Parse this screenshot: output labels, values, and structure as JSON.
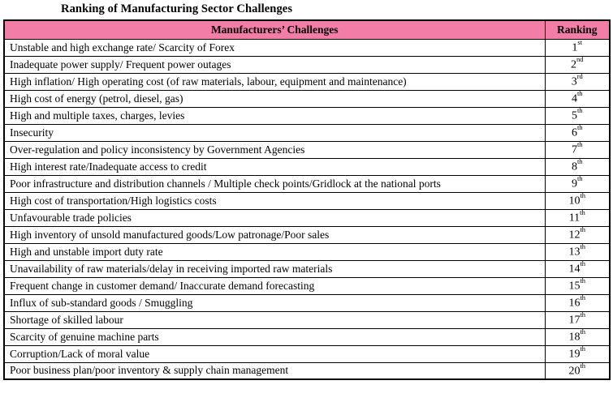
{
  "title": "Ranking of Manufacturing Sector Challenges",
  "colors": {
    "header_bg": "#f27da7",
    "border": "#000000",
    "text": "#000000"
  },
  "table": {
    "headers": [
      "Manufacturers’ Challenges",
      "Ranking"
    ],
    "rows": [
      {
        "challenge": "Unstable and high exchange rate/ Scarcity of Forex",
        "rank": "1",
        "suffix": "st"
      },
      {
        "challenge": "Inadequate power supply/ Frequent power outages",
        "rank": "2",
        "suffix": "nd"
      },
      {
        "challenge": "High inflation/ High operating cost (of raw materials, labour, equipment and maintenance)",
        "rank": "3",
        "suffix": "rd"
      },
      {
        "challenge": "High cost of energy (petrol, diesel, gas)",
        "rank": "4",
        "suffix": "th"
      },
      {
        "challenge": "High and multiple taxes, charges, levies",
        "rank": "5",
        "suffix": "th"
      },
      {
        "challenge": "Insecurity",
        "rank": "6",
        "suffix": "th"
      },
      {
        "challenge": "Over-regulation and policy inconsistency by Government Agencies",
        "rank": "7",
        "suffix": "th"
      },
      {
        "challenge": "High interest rate/Inadequate access to credit",
        "rank": "8",
        "suffix": "th"
      },
      {
        "challenge": "Poor infrastructure and distribution channels / Multiple check points/Gridlock at the national ports",
        "rank": "9",
        "suffix": "th"
      },
      {
        "challenge": "High cost of transportation/High logistics costs",
        "rank": "10",
        "suffix": "th"
      },
      {
        "challenge": "Unfavourable trade policies",
        "rank": "11",
        "suffix": "th"
      },
      {
        "challenge": "High inventory of unsold manufactured goods/Low patronage/Poor sales",
        "rank": "12",
        "suffix": "th"
      },
      {
        "challenge": "High and unstable import duty rate",
        "rank": "13",
        "suffix": "th"
      },
      {
        "challenge": "Unavailability of raw materials/delay in receiving imported raw materials",
        "rank": "14",
        "suffix": "th"
      },
      {
        "challenge": "Frequent change in customer demand/ Inaccurate demand forecasting",
        "rank": "15",
        "suffix": "th"
      },
      {
        "challenge": "Influx of sub-standard goods / Smuggling",
        "rank": "16",
        "suffix": "th"
      },
      {
        "challenge": "Shortage of skilled labour",
        "rank": "17",
        "suffix": "th"
      },
      {
        "challenge": "Scarcity of genuine machine parts",
        "rank": "18",
        "suffix": "th"
      },
      {
        "challenge": "Corruption/Lack of moral value",
        "rank": "19",
        "suffix": "th"
      },
      {
        "challenge": "Poor business plan/poor inventory &amp; supply chain management",
        "rank": "20",
        "suffix": "th"
      }
    ]
  }
}
